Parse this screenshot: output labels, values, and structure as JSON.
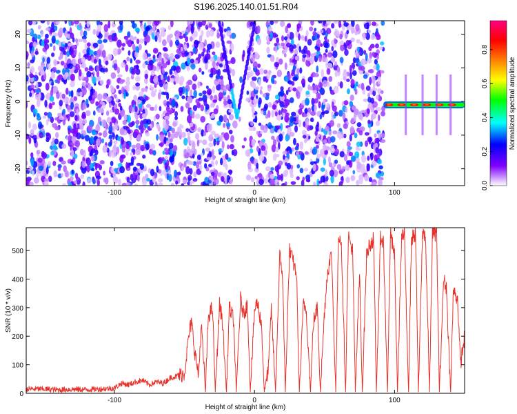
{
  "title": "S196.2025.140.01.51.R04",
  "chart_data": [
    {
      "type": "heatmap",
      "xlabel": "Height of straight line (km)",
      "ylabel": "Frequency (Hz)",
      "xlim": [
        -163,
        150
      ],
      "ylim": [
        -25,
        24
      ],
      "x_ticks": [
        -100,
        0,
        100
      ],
      "y_ticks": [
        -20,
        -10,
        0,
        10,
        20
      ],
      "colorbar": {
        "label": "Normalized spectral amplitude",
        "range": [
          0.0,
          0.97
        ],
        "ticks": [
          0.0,
          0.2,
          0.4,
          0.6,
          0.8
        ],
        "colormap": [
          "#ffffff",
          "#8000ff",
          "#0000ff",
          "#00ffff",
          "#00ff00",
          "#ffff00",
          "#ff8000",
          "#ff0000",
          "#ff0080"
        ]
      },
      "features": [
        {
          "name": "noise",
          "x_range": [
            -163,
            92
          ],
          "amplitude": "low (0.0-0.3)"
        },
        {
          "name": "tone",
          "x_range": [
            92,
            150
          ],
          "frequency_hz": -1,
          "peak_amplitude": 0.97
        },
        {
          "name": "v-shaped trace",
          "x_range": [
            -25,
            0
          ],
          "min_frequency_hz": -5
        }
      ]
    },
    {
      "type": "line",
      "xlabel": "Height of straight line (km)",
      "ylabel": "SNR (10 * v/v)",
      "xlim": [
        -163,
        150
      ],
      "ylim": [
        0,
        580
      ],
      "x_ticks": [
        -100,
        0,
        100
      ],
      "y_ticks": [
        0,
        100,
        200,
        300,
        400,
        500
      ],
      "color": "#e8312a",
      "series": [
        {
          "x": [
            -163,
            -150,
            -140,
            -130,
            -120,
            -110,
            -100,
            -95,
            -90,
            -85,
            -80,
            -75,
            -70,
            -65,
            -60,
            -55,
            -50,
            -47,
            -45,
            -43,
            -40,
            -38,
            -35,
            -33,
            -30,
            -28,
            -25,
            -23,
            -20,
            -18,
            -15,
            -13,
            -10,
            -8,
            -5,
            -3,
            0,
            2,
            5,
            7,
            10,
            12,
            15,
            18,
            20,
            22,
            25,
            27,
            30,
            32,
            35,
            37,
            40,
            42,
            45,
            47,
            50,
            52,
            55,
            58,
            60,
            62,
            65,
            67,
            70,
            72,
            75,
            77,
            80,
            82,
            85,
            87,
            90,
            92,
            95,
            97,
            100,
            102,
            105,
            107,
            110,
            112,
            115,
            117,
            120,
            122,
            125,
            127,
            130,
            132,
            135,
            137,
            140,
            142,
            145,
            147,
            150
          ],
          "y": [
            15,
            15,
            12,
            14,
            13,
            15,
            18,
            35,
            30,
            40,
            45,
            30,
            40,
            35,
            55,
            60,
            70,
            200,
            250,
            160,
            60,
            240,
            5,
            270,
            300,
            5,
            310,
            260,
            5,
            300,
            260,
            5,
            330,
            280,
            310,
            5,
            290,
            320,
            240,
            5,
            90,
            300,
            5,
            480,
            420,
            5,
            500,
            470,
            420,
            5,
            320,
            290,
            5,
            250,
            300,
            5,
            290,
            420,
            490,
            5,
            560,
            530,
            5,
            550,
            500,
            5,
            420,
            5,
            480,
            520,
            540,
            5,
            550,
            530,
            5,
            560,
            480,
            5,
            540,
            560,
            5,
            540,
            560,
            5,
            560,
            560,
            5,
            560,
            560,
            5,
            400,
            370,
            5,
            360,
            330,
            100,
            200
          ]
        }
      ]
    }
  ]
}
